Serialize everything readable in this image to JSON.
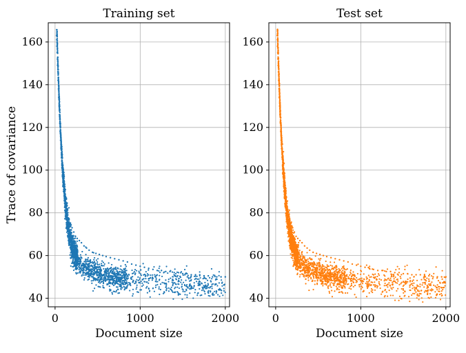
{
  "chart_data": [
    {
      "type": "scatter",
      "title": "Training set",
      "xlabel": "Document size",
      "ylabel": "Trace of covariance",
      "xlim": [
        -80,
        2050
      ],
      "ylim": [
        36,
        169
      ],
      "xticks": [
        0,
        1000,
        2000
      ],
      "yticks": [
        40,
        60,
        80,
        100,
        120,
        140,
        160
      ],
      "grid": true,
      "color": "#1f77b4",
      "series": [
        {
          "values": [
            [
              18,
              163
            ],
            [
              20,
              161
            ],
            [
              22,
              158
            ],
            [
              25,
              155
            ],
            [
              27,
              152
            ],
            [
              30,
              149
            ],
            [
              33,
              146
            ],
            [
              36,
              142
            ],
            [
              40,
              138
            ],
            [
              43,
              134
            ],
            [
              47,
              130
            ],
            [
              52,
              126
            ],
            [
              56,
              122
            ],
            [
              60,
              118
            ],
            [
              65,
              114
            ],
            [
              70,
              110
            ],
            [
              76,
              106
            ],
            [
              82,
              102
            ],
            [
              90,
              98
            ],
            [
              98,
              94
            ],
            [
              106,
              91
            ],
            [
              115,
              88
            ],
            [
              125,
              85
            ],
            [
              135,
              82
            ],
            [
              150,
              79
            ],
            [
              165,
              77
            ],
            [
              180,
              75
            ],
            [
              200,
              73
            ],
            [
              220,
              71
            ],
            [
              240,
              69
            ],
            [
              260,
              68
            ],
            [
              285,
              67
            ],
            [
              310,
              66
            ],
            [
              340,
              64.5
            ],
            [
              370,
              63.5
            ],
            [
              400,
              62.5
            ],
            [
              440,
              61.5
            ],
            [
              480,
              61
            ],
            [
              520,
              60.5
            ],
            [
              560,
              60
            ],
            [
              600,
              59.5
            ],
            [
              650,
              59
            ],
            [
              700,
              58.5
            ],
            [
              750,
              58
            ],
            [
              800,
              57.5
            ],
            [
              850,
              57
            ],
            [
              900,
              56
            ],
            [
              950,
              55.5
            ],
            [
              1000,
              55
            ],
            [
              1050,
              54.5
            ],
            [
              1100,
              54
            ],
            [
              1150,
              53.5
            ],
            [
              1200,
              53
            ],
            [
              1250,
              53
            ],
            [
              1300,
              52.5
            ],
            [
              1350,
              52.5
            ],
            [
              1400,
              52
            ],
            [
              1450,
              52
            ],
            [
              1500,
              51.5
            ],
            [
              1550,
              51.5
            ],
            [
              1600,
              51
            ],
            [
              1650,
              51
            ],
            [
              1700,
              51
            ],
            [
              1750,
              50.5
            ],
            [
              1800,
              50.5
            ],
            [
              1850,
              50
            ],
            [
              1900,
              50
            ],
            [
              1950,
              50
            ],
            [
              2000,
              50
            ]
          ]
        }
      ]
    },
    {
      "type": "scatter",
      "title": "Test set",
      "xlabel": "Document size",
      "ylabel": "",
      "xlim": [
        -80,
        2050
      ],
      "ylim": [
        36,
        169
      ],
      "xticks": [
        0,
        1000,
        2000
      ],
      "yticks": [
        40,
        60,
        80,
        100,
        120,
        140,
        160
      ],
      "grid": true,
      "color": "#ff7f0e",
      "series": [
        {
          "values": [
            [
              18,
              163
            ],
            [
              20,
              161
            ],
            [
              22,
              158
            ],
            [
              25,
              155
            ],
            [
              27,
              152
            ],
            [
              30,
              149
            ],
            [
              33,
              146
            ],
            [
              36,
              142
            ],
            [
              40,
              138
            ],
            [
              43,
              134
            ],
            [
              47,
              130
            ],
            [
              52,
              126
            ],
            [
              56,
              122
            ],
            [
              60,
              118
            ],
            [
              65,
              114
            ],
            [
              70,
              110
            ],
            [
              76,
              106
            ],
            [
              82,
              102
            ],
            [
              90,
              98
            ],
            [
              98,
              94
            ],
            [
              106,
              91
            ],
            [
              115,
              88
            ],
            [
              125,
              85
            ],
            [
              135,
              82
            ],
            [
              150,
              79
            ],
            [
              165,
              77
            ],
            [
              180,
              75
            ],
            [
              200,
              73
            ],
            [
              220,
              71
            ],
            [
              240,
              69
            ],
            [
              260,
              68
            ],
            [
              285,
              67
            ],
            [
              310,
              66
            ],
            [
              340,
              64.5
            ],
            [
              370,
              63.5
            ],
            [
              400,
              62.5
            ],
            [
              440,
              61.5
            ],
            [
              480,
              61
            ],
            [
              520,
              60.5
            ],
            [
              560,
              60
            ],
            [
              600,
              59.5
            ],
            [
              650,
              59
            ],
            [
              700,
              58.5
            ],
            [
              750,
              58
            ],
            [
              800,
              57.5
            ],
            [
              850,
              57
            ],
            [
              900,
              56
            ],
            [
              950,
              55.5
            ],
            [
              1000,
              55
            ],
            [
              1050,
              54.5
            ],
            [
              1100,
              54
            ],
            [
              1150,
              53.5
            ],
            [
              1200,
              53
            ],
            [
              1250,
              53
            ],
            [
              1300,
              52.5
            ],
            [
              1350,
              52.5
            ],
            [
              1400,
              52
            ],
            [
              1450,
              52
            ],
            [
              1500,
              51.5
            ],
            [
              1550,
              51.5
            ],
            [
              1600,
              51
            ],
            [
              1650,
              51
            ],
            [
              1700,
              51
            ],
            [
              1750,
              50.5
            ],
            [
              1800,
              50.5
            ],
            [
              1850,
              50
            ],
            [
              1900,
              50
            ],
            [
              1950,
              50
            ],
            [
              2000,
              50
            ]
          ]
        }
      ]
    }
  ]
}
